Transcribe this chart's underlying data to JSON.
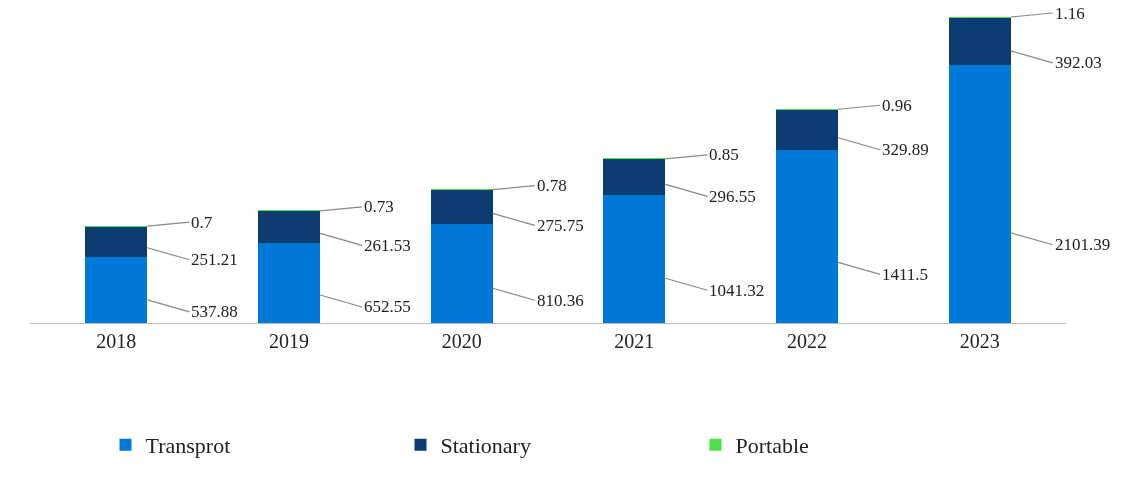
{
  "chart_data": {
    "type": "bar",
    "stacked": true,
    "data_labels": true,
    "legend": "bottom",
    "categories": [
      "2018",
      "2019",
      "2020",
      "2021",
      "2022",
      "2023"
    ],
    "series": [
      {
        "name": "Transprot",
        "color": "#0078d7",
        "values": [
          537.88,
          652.55,
          810.36,
          1041.32,
          1411.5,
          2101.39
        ]
      },
      {
        "name": "Stationary",
        "color": "#0c3c72",
        "values": [
          251.21,
          261.53,
          275.75,
          296.55,
          329.89,
          392.03
        ]
      },
      {
        "name": "Portable",
        "color": "#4ce04c",
        "values": [
          0.7,
          0.73,
          0.78,
          0.85,
          0.96,
          1.16
        ]
      }
    ]
  }
}
